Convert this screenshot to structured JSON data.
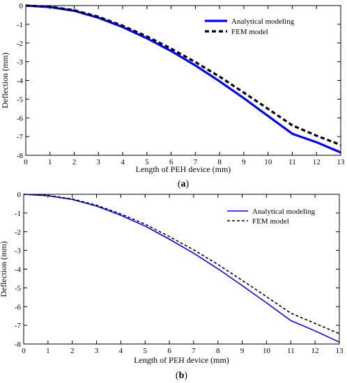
{
  "colors": {
    "analytical": "#0000ff",
    "fem": "#000000",
    "axis": "#000000",
    "background": "#ffffff"
  },
  "chart_data": [
    {
      "type": "line",
      "caption": "(a)",
      "caption_parts": [
        "(",
        "a",
        ")"
      ],
      "xlabel": "Length of PEH device (mm)",
      "ylabel": "Deflection (mm)",
      "xlim": [
        0,
        13
      ],
      "ylim": [
        -8,
        0
      ],
      "x_ticks": [
        0,
        1,
        2,
        3,
        4,
        5,
        6,
        7,
        8,
        9,
        10,
        11,
        12,
        13
      ],
      "x_tick_labels": [
        "0",
        "1",
        "2",
        "3",
        "4",
        "5",
        "6",
        "7",
        "8",
        "9",
        "10",
        "11",
        "12",
        "13"
      ],
      "y_ticks": [
        0,
        -1,
        -2,
        -3,
        -4,
        -5,
        -6,
        -7,
        -8
      ],
      "y_tick_labels": [
        "0",
        "-1",
        "-2",
        "-3",
        "-4",
        "-5",
        "-6",
        "-7",
        "-8"
      ],
      "grid": false,
      "legend_position": "top-right",
      "line_weight": "thick",
      "series": [
        {
          "name": "Analytical modeling",
          "style": "solid",
          "x": [
            0,
            1,
            2,
            3,
            4,
            5,
            6,
            7,
            8,
            9,
            10,
            11,
            12,
            13
          ],
          "y": [
            0,
            -0.08,
            -0.28,
            -0.65,
            -1.15,
            -1.75,
            -2.43,
            -3.2,
            -4.05,
            -4.95,
            -5.9,
            -6.85,
            -7.3,
            -7.85
          ]
        },
        {
          "name": "FEM model",
          "style": "dashed",
          "x": [
            0,
            1,
            2,
            3,
            4,
            5,
            6,
            7,
            8,
            9,
            10,
            11,
            12,
            13
          ],
          "y": [
            0,
            -0.06,
            -0.25,
            -0.6,
            -1.08,
            -1.65,
            -2.3,
            -3.02,
            -3.8,
            -4.65,
            -5.52,
            -6.4,
            -6.95,
            -7.45
          ]
        }
      ]
    },
    {
      "type": "line",
      "caption": "(b)",
      "caption_parts": [
        "(",
        "b",
        ")"
      ],
      "xlabel": "Length of PEH device (mm)",
      "ylabel": "Deflection (mm)",
      "xlim": [
        0,
        13
      ],
      "ylim": [
        -8,
        0
      ],
      "x_ticks": [
        0,
        1,
        2,
        3,
        4,
        5,
        6,
        7,
        8,
        9,
        10,
        11,
        12,
        13
      ],
      "x_tick_labels": [
        "0",
        "1",
        "2",
        "3",
        "4",
        "5",
        "6",
        "7",
        "8",
        "9",
        "10",
        "11",
        "12",
        "13"
      ],
      "y_ticks": [
        0,
        -1,
        -2,
        -3,
        -4,
        -5,
        -6,
        -7,
        -8
      ],
      "y_tick_labels": [
        "0",
        "-1",
        "-2",
        "-3",
        "-4",
        "-5",
        "-6",
        "-7",
        "-8"
      ],
      "grid": false,
      "legend_position": "top-right",
      "line_weight": "thin",
      "series": [
        {
          "name": "Analytical modeling",
          "style": "solid",
          "x": [
            0,
            1,
            2,
            3,
            4,
            5,
            6,
            7,
            8,
            9,
            10,
            11,
            12,
            13
          ],
          "y": [
            0,
            -0.08,
            -0.28,
            -0.63,
            -1.12,
            -1.7,
            -2.4,
            -3.15,
            -3.98,
            -4.88,
            -5.8,
            -6.75,
            -7.3,
            -7.9
          ]
        },
        {
          "name": "FEM model",
          "style": "dashed",
          "x": [
            0,
            1,
            2,
            3,
            4,
            5,
            6,
            7,
            8,
            9,
            10,
            11,
            12,
            13
          ],
          "y": [
            0,
            -0.06,
            -0.25,
            -0.58,
            -1.05,
            -1.6,
            -2.26,
            -2.97,
            -3.75,
            -4.6,
            -5.47,
            -6.35,
            -6.9,
            -7.45
          ]
        }
      ]
    }
  ]
}
